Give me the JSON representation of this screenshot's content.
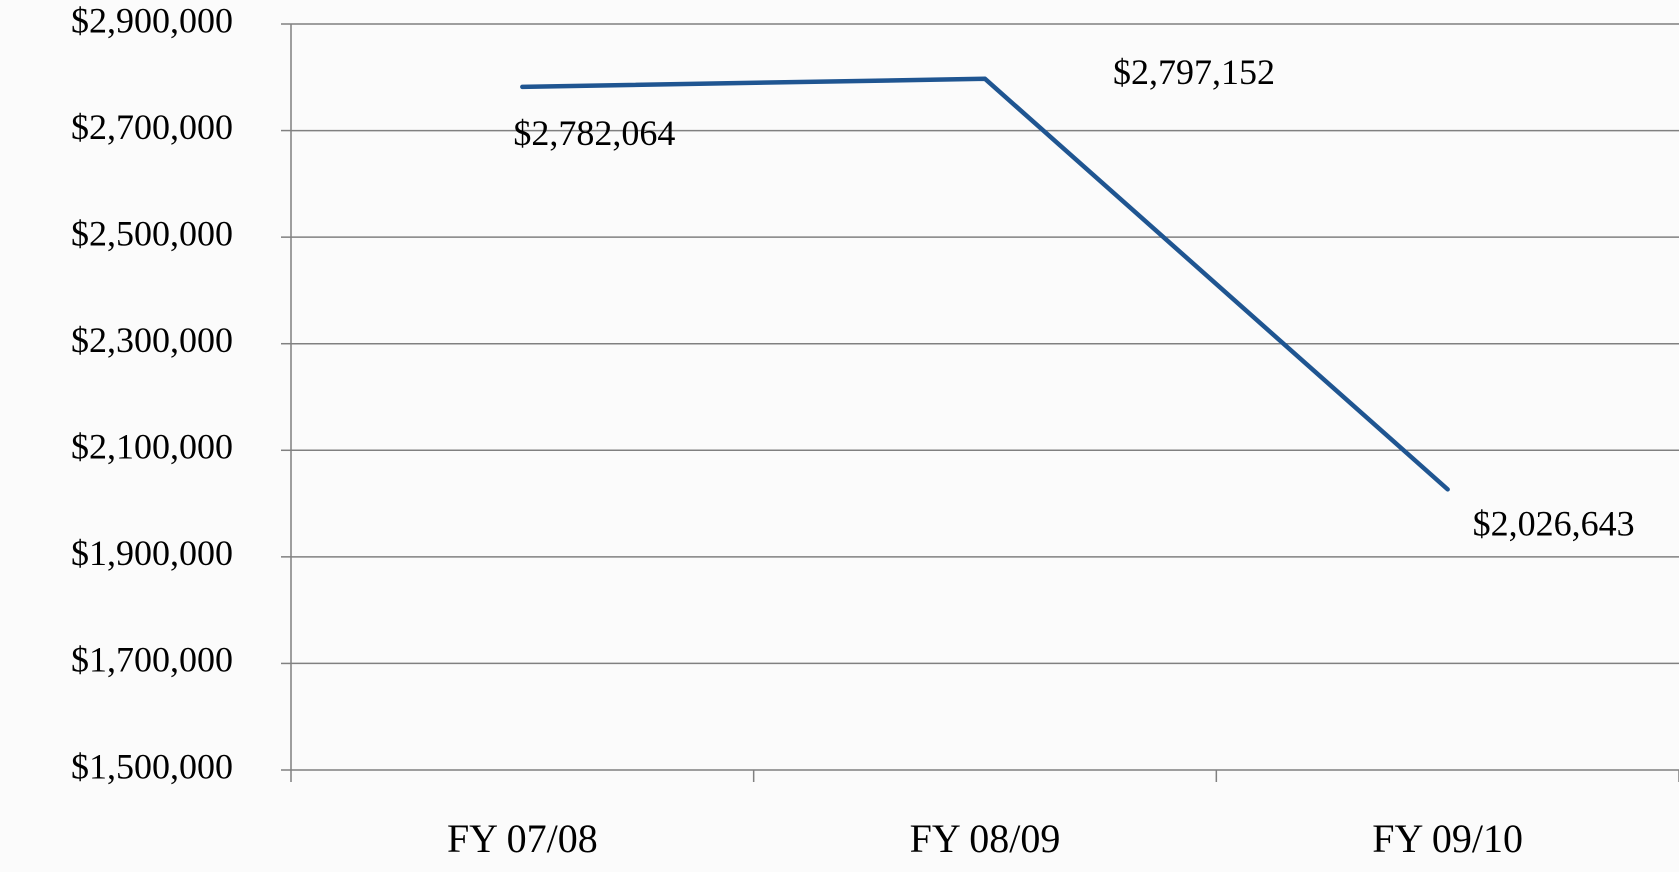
{
  "chart_data": {
    "type": "line",
    "categories": [
      "FY 07/08",
      "FY 08/09",
      "FY 09/10"
    ],
    "series": [
      {
        "name": null,
        "color": "#1f5591",
        "values": [
          2782064,
          2797152,
          2026643
        ],
        "value_labels": [
          "$2,782,064",
          "$2,797,152",
          "$2,026,643"
        ]
      }
    ],
    "ylim": [
      1500000,
      2900000
    ],
    "yticks": [
      {
        "value": 1500000,
        "label": "$1,500,000"
      },
      {
        "value": 1700000,
        "label": "$1,700,000"
      },
      {
        "value": 1900000,
        "label": "$1,900,000"
      },
      {
        "value": 2100000,
        "label": "$2,100,000"
      },
      {
        "value": 2300000,
        "label": "$2,300,000"
      },
      {
        "value": 2500000,
        "label": "$2,500,000"
      },
      {
        "value": 2700000,
        "label": "$2,700,000"
      },
      {
        "value": 2900000,
        "label": "$2,900,000"
      }
    ],
    "grid": true
  }
}
